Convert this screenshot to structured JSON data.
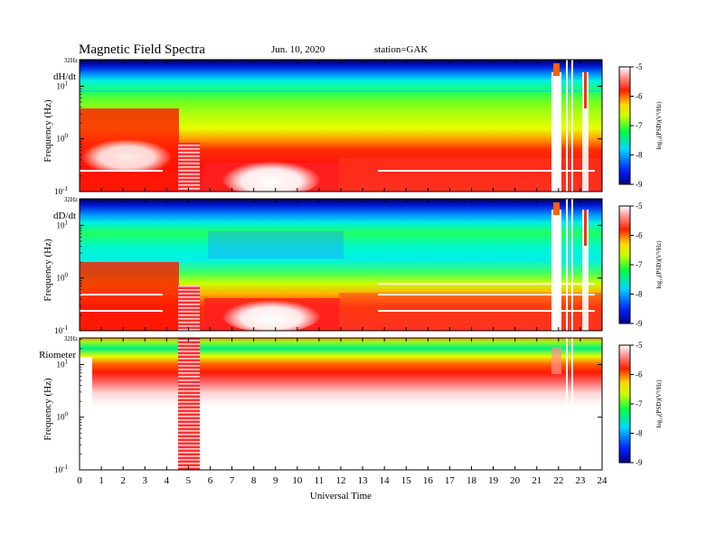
{
  "header": {
    "title": "Magnetic  Field  Spectra",
    "date": "Jun. 10, 2020",
    "station": "station=GAK"
  },
  "chart_data": [
    {
      "type": "heatmap",
      "panel_label": "dH/dt",
      "ylabel": "Frequency  (Hz)",
      "xlabel": "",
      "y_scale": "log",
      "ylim_hz": [
        0.1,
        32
      ],
      "y_top_label": "32Hz",
      "y_ticks": [
        {
          "hz": 10,
          "b": "10",
          "e": "1"
        },
        {
          "hz": 1,
          "b": "10",
          "e": "0"
        },
        {
          "hz": 0.1,
          "b": "10",
          "e": "-1"
        }
      ],
      "colorbar": {
        "ticks": [
          "-5",
          "-6",
          "-7",
          "-8",
          "-9"
        ],
        "label": "log₁₀(PSD)(V²/Hz)",
        "range": [
          -9,
          -5
        ]
      }
    },
    {
      "type": "heatmap",
      "panel_label": "dD/dt",
      "ylabel": "Frequency  (Hz)",
      "xlabel": "",
      "y_scale": "log",
      "ylim_hz": [
        0.1,
        32
      ],
      "y_top_label": "32Hz",
      "y_ticks": [
        {
          "hz": 10,
          "b": "10",
          "e": "1"
        },
        {
          "hz": 1,
          "b": "10",
          "e": "0"
        },
        {
          "hz": 0.1,
          "b": "10",
          "e": "-1"
        }
      ],
      "colorbar": {
        "ticks": [
          "-5",
          "-6",
          "-7",
          "-8",
          "-9"
        ],
        "label": "log₁₀(PSD)(V²/Hz)",
        "range": [
          -9,
          -5
        ]
      }
    },
    {
      "type": "heatmap",
      "panel_label": "Riometer",
      "ylabel": "Frequency  (Hz)",
      "xlabel": "Universal Time",
      "y_scale": "log",
      "ylim_hz": [
        0.1,
        32
      ],
      "y_top_label": "32Hz",
      "y_ticks": [
        {
          "hz": 10,
          "b": "10",
          "e": "1"
        },
        {
          "hz": 1,
          "b": "10",
          "e": "0"
        },
        {
          "hz": 0.1,
          "b": "10",
          "e": "-1"
        }
      ],
      "x_ticks": [
        "0",
        "1",
        "2",
        "3",
        "4",
        "5",
        "6",
        "7",
        "8",
        "9",
        "10",
        "11",
        "12",
        "13",
        "14",
        "15",
        "16",
        "17",
        "18",
        "19",
        "20",
        "21",
        "22",
        "23",
        "24"
      ],
      "xlim_ut_hours": [
        0,
        24
      ],
      "colorbar": {
        "ticks": [
          "-5",
          "-6",
          "-7",
          "-8",
          "-9"
        ],
        "label": "log₁₀(PSD)(V²/Hz)",
        "range": [
          -9,
          -5
        ]
      }
    }
  ]
}
